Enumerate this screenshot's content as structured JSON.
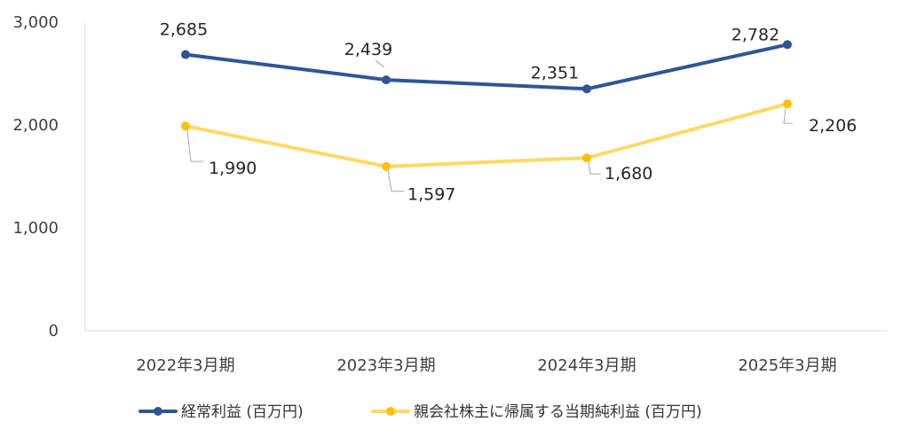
{
  "chart_data": {
    "type": "line",
    "categories": [
      "2022年3月期",
      "2023年3月期",
      "2024年3月期",
      "2025年3月期"
    ],
    "series": [
      {
        "name": "経常利益 (百万円)",
        "values": [
          2685,
          2439,
          2351,
          2782
        ],
        "labels": [
          "2,685",
          "2,439",
          "2,351",
          "2,782"
        ],
        "color": "#2f5597"
      },
      {
        "name": "親会社株主に帰属する当期純利益 (百万円)",
        "values": [
          1990,
          1597,
          1680,
          2206
        ],
        "labels": [
          "1,990",
          "1,597",
          "1,680",
          "2,206"
        ],
        "color": "#ffc000",
        "line_color": "#ffd966"
      }
    ],
    "ylim": [
      0,
      3000
    ],
    "yticks": [
      {
        "value": 0,
        "label": "0"
      },
      {
        "value": 1000,
        "label": "1,000"
      },
      {
        "value": 2000,
        "label": "2,000"
      },
      {
        "value": 3000,
        "label": "3,000"
      }
    ],
    "grid": false,
    "legend_position": "bottom",
    "axis_color": "#d9d9d9",
    "leader_color": "#a6a6a6"
  }
}
